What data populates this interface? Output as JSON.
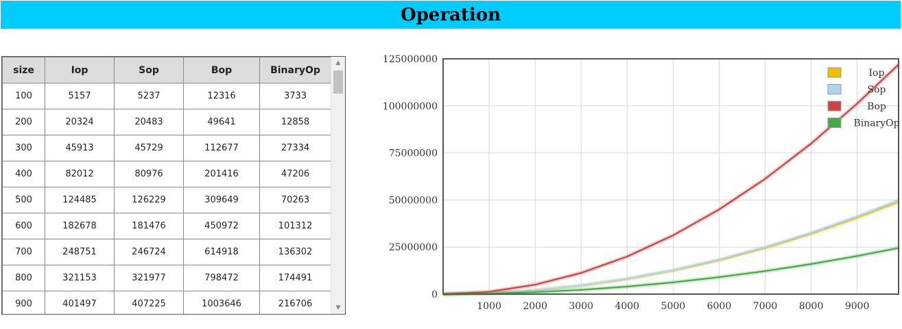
{
  "header": {
    "title": "Operation"
  },
  "table": {
    "columns": [
      "size",
      "Iop",
      "Sop",
      "Bop",
      "BinaryOp"
    ],
    "rows": [
      [
        "100",
        "5157",
        "5237",
        "12316",
        "3733"
      ],
      [
        "200",
        "20324",
        "20483",
        "49641",
        "12858"
      ],
      [
        "300",
        "45913",
        "45729",
        "112677",
        "27334"
      ],
      [
        "400",
        "82012",
        "80976",
        "201416",
        "47206"
      ],
      [
        "500",
        "124485",
        "126229",
        "309649",
        "70263"
      ],
      [
        "600",
        "182678",
        "181476",
        "450972",
        "101312"
      ],
      [
        "700",
        "248751",
        "246724",
        "614918",
        "136302"
      ],
      [
        "800",
        "321153",
        "321977",
        "798472",
        "174491"
      ],
      [
        "900",
        "401497",
        "407225",
        "1003646",
        "216706"
      ]
    ]
  },
  "chart_data": {
    "type": "line",
    "title": "",
    "xlabel": "",
    "ylabel": "",
    "xlim": [
      0,
      9900
    ],
    "ylim": [
      0,
      125000000
    ],
    "x_ticks": [
      "1000",
      "2000",
      "3000",
      "4000",
      "5000",
      "6000",
      "7000",
      "8000",
      "9000"
    ],
    "y_ticks": [
      "0",
      "25000000",
      "50000000",
      "75000000",
      "100000000",
      "125000000"
    ],
    "grid": true,
    "legend_position": "top-right",
    "x": [
      0,
      1000,
      2000,
      3000,
      4000,
      5000,
      6000,
      7000,
      8000,
      9000,
      9900
    ],
    "series": [
      {
        "name": "Iop",
        "color": "#f0c000",
        "values": [
          0,
          500000,
          2000000,
          4500000,
          8000000,
          12500000,
          18000000,
          24500000,
          32000000,
          40500000,
          49000000
        ]
      },
      {
        "name": "Sop",
        "color": "#b0d4f0",
        "values": [
          0,
          510000,
          2040000,
          4590000,
          8160000,
          12750000,
          18360000,
          24990000,
          32640000,
          41310000,
          49980000
        ]
      },
      {
        "name": "Bop",
        "color": "#cc4444",
        "values": [
          0,
          1250000,
          5000000,
          11250000,
          20000000,
          31250000,
          45000000,
          61250000,
          80000000,
          101250000,
          122000000
        ]
      },
      {
        "name": "BinaryOp",
        "color": "#44aa44",
        "values": [
          0,
          250000,
          1000000,
          2250000,
          4000000,
          6250000,
          9000000,
          12250000,
          16000000,
          20250000,
          24500000
        ]
      }
    ]
  }
}
